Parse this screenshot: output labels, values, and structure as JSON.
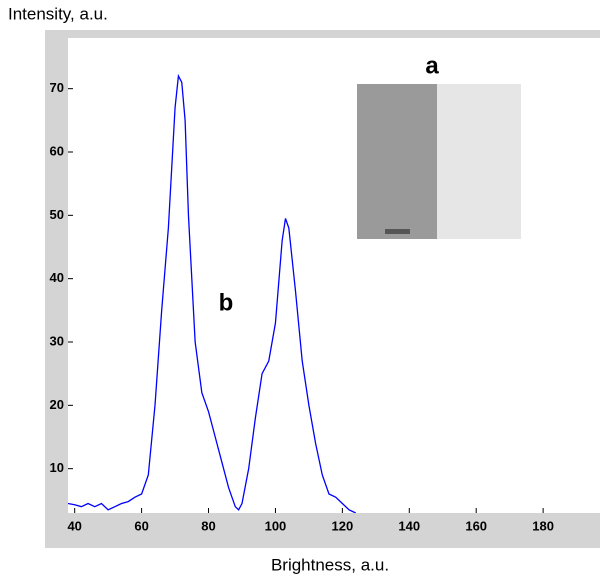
{
  "chart_data": {
    "type": "line",
    "y_label": "Intensity, a.u.",
    "x_label": "Brightness, a.u.",
    "annotations": [
      "a",
      "b"
    ],
    "x": [
      38,
      40,
      42,
      44,
      46,
      48,
      50,
      52,
      54,
      56,
      58,
      60,
      62,
      64,
      66,
      68,
      70,
      71,
      72,
      73,
      74,
      76,
      78,
      80,
      82,
      84,
      86,
      88,
      89,
      90,
      92,
      94,
      96,
      98,
      100,
      102,
      103,
      104,
      106,
      108,
      110,
      112,
      114,
      116,
      118,
      120,
      122,
      124
    ],
    "series": [
      {
        "color": "#0000ff",
        "values": [
          4.5,
          4.3,
          4,
          4.5,
          4,
          4.5,
          3.5,
          4,
          4.5,
          4.8,
          5.5,
          6,
          9,
          20,
          35,
          48,
          67,
          72,
          71,
          65,
          50,
          30,
          22,
          19,
          15,
          11,
          7,
          4,
          3.5,
          4.5,
          10,
          18,
          25,
          27,
          33,
          46,
          49.5,
          48,
          38,
          27,
          20,
          14,
          9,
          6,
          5.5,
          4.5,
          3.5,
          3
        ]
      }
    ],
    "xlim": [
      38,
      197
    ],
    "ylim": [
      3,
      78
    ],
    "xticks": [
      40,
      60,
      80,
      100,
      120,
      140,
      160,
      180
    ],
    "yticks": [
      10,
      20,
      30,
      40,
      50,
      60,
      70
    ]
  }
}
